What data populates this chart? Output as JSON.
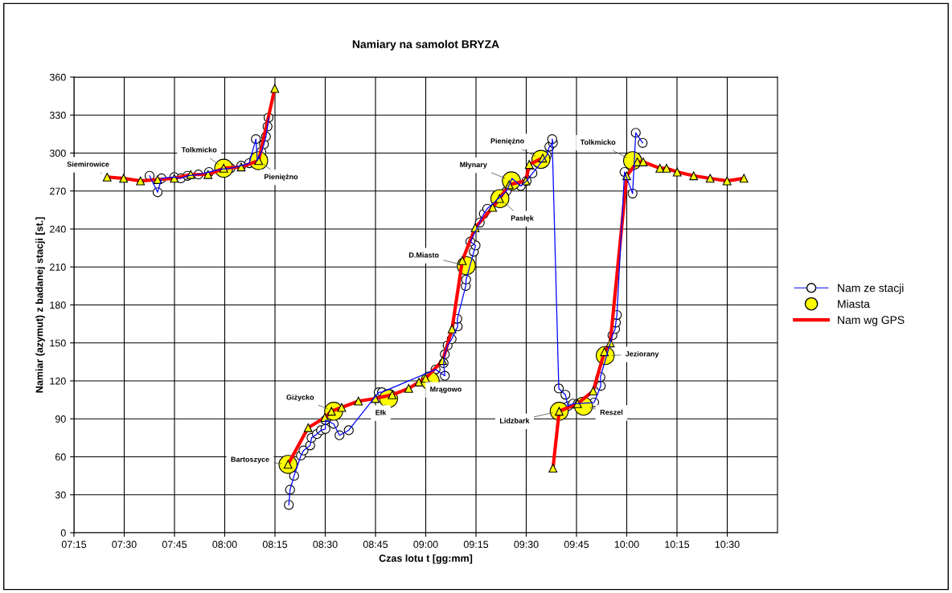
{
  "chart_data": {
    "type": "line",
    "title": "Namiary na samolot BRYZA",
    "xlabel": "Czas lotu t [gg:mm]",
    "ylabel": "Namiar (azymut) z badanej stacji [st.]",
    "xlim": [
      7.25,
      10.75
    ],
    "xticks": [
      {
        "value": 7.25,
        "label": "07:15"
      },
      {
        "value": 7.5,
        "label": "07:30"
      },
      {
        "value": 7.75,
        "label": "07:45"
      },
      {
        "value": 8.0,
        "label": "08:00"
      },
      {
        "value": 8.25,
        "label": "08:15"
      },
      {
        "value": 8.5,
        "label": "08:30"
      },
      {
        "value": 8.75,
        "label": "08:45"
      },
      {
        "value": 9.0,
        "label": "09:00"
      },
      {
        "value": 9.25,
        "label": "09:15"
      },
      {
        "value": 9.5,
        "label": "09:30"
      },
      {
        "value": 9.75,
        "label": "09:45"
      },
      {
        "value": 10.0,
        "label": "10:00"
      },
      {
        "value": 10.25,
        "label": "10:15"
      },
      {
        "value": 10.5,
        "label": "10:30"
      }
    ],
    "ylim": [
      0,
      360
    ],
    "yticks": [
      0,
      30,
      60,
      90,
      120,
      150,
      180,
      210,
      240,
      270,
      300,
      330,
      360
    ],
    "grid": true,
    "legend": "right",
    "series": [
      {
        "name": "Nam ze stacji",
        "marker": "circle",
        "color": "#0000ff",
        "x": [
          7.626,
          7.666,
          7.686,
          7.749,
          7.782,
          7.815,
          7.869,
          7.922,
          7.975,
          8.029,
          8.082,
          8.122,
          8.155,
          8.162,
          8.182,
          8.195,
          8.205,
          8.213,
          8.218,
          8.27,
          8.319,
          8.325,
          8.345,
          8.379,
          8.392,
          8.425,
          8.432,
          8.459,
          8.479,
          8.501,
          8.501,
          8.542,
          8.571,
          8.617,
          8.766,
          8.782,
          9.049,
          9.095,
          9.089,
          9.095,
          9.109,
          9.129,
          9.159,
          9.157,
          9.199,
          9.201,
          9.239,
          9.248,
          9.222,
          9.269,
          9.289,
          9.306,
          9.402,
          9.429,
          9.473,
          9.502,
          9.531,
          9.602,
          9.615,
          9.633,
          9.629,
          9.662,
          9.695,
          9.707,
          9.733,
          9.757,
          9.838,
          9.871,
          9.869,
          9.929,
          9.942,
          9.946,
          9.951,
          9.989,
          10.029,
          10.045,
          10.079
        ],
        "values": [
          282,
          269,
          280,
          281,
          280,
          282,
          283,
          285,
          287,
          288,
          290,
          292,
          311,
          294,
          301,
          307,
          313,
          321,
          328,
          null,
          22,
          34,
          45,
          61,
          65,
          69,
          75,
          78,
          81,
          82,
          89,
          86,
          77,
          81,
          111,
          111,
          129,
          124,
          134,
          141,
          148,
          153,
          163,
          169,
          195,
          200,
          222,
          227,
          230,
          245,
          252,
          256,
          270,
          280,
          274,
          278,
          284,
          298,
          305,
          308,
          311,
          114,
          109,
          100,
          102,
          102,
          103,
          116,
          123,
          156,
          161,
          166,
          172,
          285,
          268,
          316,
          308
        ]
      },
      {
        "name": "Miasta",
        "type": "scatter",
        "marker": "circle",
        "color": "#ffff00",
        "x": [
          7.995,
          8.169,
          8.315,
          8.542,
          8.815,
          9.022,
          9.202,
          9.369,
          9.426,
          9.573,
          9.664,
          9.785,
          9.893,
          10.029
        ],
        "values": [
          288,
          294,
          54,
          96,
          106,
          120,
          211,
          264,
          278,
          295,
          96,
          100,
          140,
          294
        ]
      },
      {
        "name": "Nam wg GPS",
        "marker": "triangle",
        "color": "#ff0000",
        "x": [
          7.415,
          7.497,
          7.581,
          7.666,
          7.749,
          7.831,
          7.917,
          7.995,
          8.082,
          8.169,
          8.249,
          8.28,
          8.315,
          8.415,
          8.498,
          8.531,
          8.582,
          8.665,
          8.749,
          8.833,
          8.915,
          8.966,
          8.999,
          9.084,
          9.131,
          9.182,
          9.246,
          9.333,
          9.367,
          9.415,
          9.498,
          9.515,
          9.582,
          9.61,
          9.633,
          9.664,
          9.755,
          9.833,
          9.889,
          9.918,
          10.0,
          10.053,
          10.082,
          10.165,
          10.198,
          10.251,
          10.333,
          10.415,
          10.499,
          10.583
        ],
        "values": [
          281,
          280,
          278,
          279,
          280,
          283,
          283,
          288,
          289,
          294,
          351,
          null,
          54,
          83,
          91,
          96,
          99,
          104,
          106,
          109,
          114,
          119,
          122,
          136,
          161,
          215,
          241,
          257,
          264,
          275,
          278,
          291,
          296,
          null,
          51,
          96,
          102,
          112,
          143,
          150,
          282,
          293,
          293,
          288,
          288,
          285,
          282,
          280,
          278,
          280
        ]
      }
    ],
    "annotations": [
      {
        "text": "Siemirowice",
        "x": 7.415,
        "y": 281
      },
      {
        "text": "Tolkmicko",
        "x": 7.995,
        "y": 288
      },
      {
        "text": "Pieniężno",
        "x": 8.169,
        "y": 294
      },
      {
        "text": "Bartoszyce",
        "x": 8.315,
        "y": 54
      },
      {
        "text": "Giżycko",
        "x": 8.542,
        "y": 96
      },
      {
        "text": "Ełk",
        "x": 8.815,
        "y": 106
      },
      {
        "text": "Mrągowo",
        "x": 9.022,
        "y": 120
      },
      {
        "text": "D.Miasto",
        "x": 9.202,
        "y": 211
      },
      {
        "text": "Młynary",
        "x": 9.426,
        "y": 278
      },
      {
        "text": "Pasłęk",
        "x": 9.369,
        "y": 264
      },
      {
        "text": "Pieniężno",
        "x": 9.573,
        "y": 295
      },
      {
        "text": "Tolkmicko",
        "x": 10.029,
        "y": 294
      },
      {
        "text": "Lidzbark",
        "x": 9.664,
        "y": 96
      },
      {
        "text": "Reszel",
        "x": 9.785,
        "y": 100
      },
      {
        "text": "Jeziorany",
        "x": 9.893,
        "y": 140
      }
    ]
  }
}
